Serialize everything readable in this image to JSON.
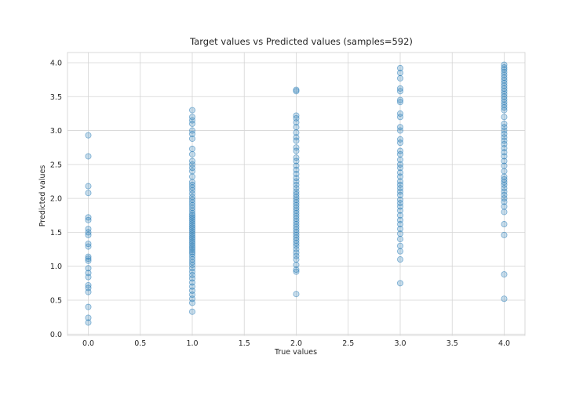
{
  "chart_data": {
    "type": "scatter",
    "title": "Target values vs Predicted values (samples=592)",
    "xlabel": "True values",
    "ylabel": "Predicted values",
    "xlim": [
      -0.2,
      4.2
    ],
    "ylim": [
      -0.02,
      4.15
    ],
    "xticks": [
      "0.0",
      "0.5",
      "1.0",
      "1.5",
      "2.0",
      "2.5",
      "3.0",
      "3.5",
      "4.0"
    ],
    "yticks": [
      "0.0",
      "0.5",
      "1.0",
      "1.5",
      "2.0",
      "2.5",
      "3.0",
      "3.5",
      "4.0"
    ],
    "grid": true,
    "legend": "none",
    "point_color": "#1f77b4",
    "series": [
      {
        "x": 0,
        "y": [
          2.93,
          2.62,
          2.18,
          2.08,
          1.72,
          1.68,
          1.55,
          1.5,
          1.46,
          1.33,
          1.29,
          1.14,
          1.11,
          1.08,
          0.97,
          0.9,
          0.84,
          0.72,
          0.68,
          0.62,
          0.4,
          0.24,
          0.17
        ]
      },
      {
        "x": 1,
        "y": [
          3.3,
          3.2,
          3.15,
          3.1,
          3.0,
          2.95,
          2.88,
          2.73,
          2.65,
          2.55,
          2.5,
          2.45,
          2.4,
          2.32,
          2.24,
          2.2,
          2.16,
          2.12,
          2.07,
          2.02,
          1.98,
          1.94,
          1.9,
          1.86,
          1.82,
          1.78,
          1.75,
          1.72,
          1.69,
          1.66,
          1.63,
          1.6,
          1.57,
          1.54,
          1.51,
          1.48,
          1.45,
          1.42,
          1.39,
          1.36,
          1.33,
          1.3,
          1.27,
          1.24,
          1.21,
          1.18,
          1.14,
          1.1,
          1.06,
          1.02,
          0.97,
          0.92,
          0.87,
          0.82,
          0.76,
          0.7,
          0.64,
          0.58,
          0.52,
          0.46,
          0.33
        ]
      },
      {
        "x": 2,
        "y": [
          3.6,
          3.58,
          3.22,
          3.18,
          3.12,
          3.05,
          2.97,
          2.9,
          2.85,
          2.75,
          2.7,
          2.6,
          2.55,
          2.48,
          2.42,
          2.36,
          2.3,
          2.25,
          2.2,
          2.15,
          2.1,
          2.06,
          2.02,
          1.98,
          1.94,
          1.9,
          1.86,
          1.82,
          1.78,
          1.74,
          1.7,
          1.66,
          1.62,
          1.58,
          1.54,
          1.5,
          1.46,
          1.42,
          1.38,
          1.34,
          1.3,
          1.25,
          1.2,
          1.15,
          1.1,
          1.02,
          0.95,
          0.92,
          0.59
        ]
      },
      {
        "x": 3,
        "y": [
          3.92,
          3.85,
          3.77,
          3.62,
          3.58,
          3.45,
          3.42,
          3.25,
          3.2,
          3.05,
          3.0,
          2.87,
          2.82,
          2.7,
          2.65,
          2.57,
          2.5,
          2.45,
          2.38,
          2.32,
          2.25,
          2.2,
          2.15,
          2.1,
          2.05,
          1.98,
          1.93,
          1.88,
          1.82,
          1.75,
          1.68,
          1.62,
          1.55,
          1.48,
          1.4,
          1.3,
          1.22,
          1.1,
          0.75
        ]
      },
      {
        "x": 4,
        "y": [
          3.97,
          3.93,
          3.9,
          3.86,
          3.82,
          3.78,
          3.74,
          3.7,
          3.66,
          3.62,
          3.58,
          3.54,
          3.5,
          3.46,
          3.42,
          3.38,
          3.34,
          3.3,
          3.2,
          3.1,
          3.05,
          3.0,
          2.95,
          2.9,
          2.85,
          2.8,
          2.74,
          2.68,
          2.62,
          2.55,
          2.48,
          2.4,
          2.32,
          2.28,
          2.24,
          2.2,
          2.15,
          2.1,
          2.05,
          2.0,
          1.95,
          1.88,
          1.8,
          1.62,
          1.46,
          0.88,
          0.52
        ]
      }
    ]
  }
}
